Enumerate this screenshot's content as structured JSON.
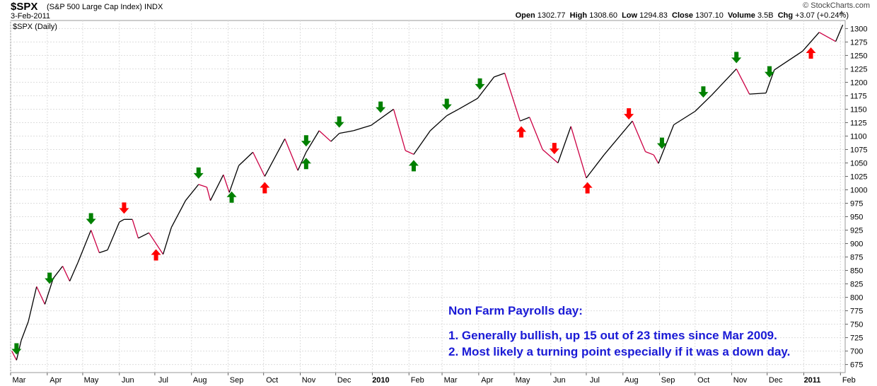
{
  "header": {
    "symbol": "$SPX",
    "description": "(S&P 500 Large Cap Index)",
    "exchange": "INDX",
    "date": "3-Feb-2011",
    "brand": "© StockCharts.com",
    "quote": {
      "open_label": "Open",
      "open": "1302.77",
      "high_label": "High",
      "high": "1308.60",
      "low_label": "Low",
      "low": "1294.83",
      "close_label": "Close",
      "close": "1307.10",
      "volume_label": "Volume",
      "volume": "3.5B",
      "chg_label": "Chg",
      "chg": "+3.07 (+0.24%)"
    }
  },
  "chart_data": {
    "type": "line",
    "title": "$SPX (Daily)",
    "ylim": [
      660,
      1315
    ],
    "y_ticks": [
      675,
      700,
      725,
      750,
      775,
      800,
      825,
      850,
      875,
      900,
      925,
      950,
      975,
      1000,
      1025,
      1050,
      1075,
      1100,
      1125,
      1150,
      1175,
      1200,
      1225,
      1250,
      1275,
      1300
    ],
    "x_labels": [
      "Mar",
      "Apr",
      "May",
      "Jun",
      "Jul",
      "Aug",
      "Sep",
      "Oct",
      "Nov",
      "Dec",
      "2010",
      "Feb",
      "Mar",
      "Apr",
      "May",
      "Jun",
      "Jul",
      "Aug",
      "Sep",
      "Oct",
      "Nov",
      "Dec",
      "2011",
      "Feb"
    ],
    "bold_x_labels": [
      "2010",
      "2011"
    ],
    "grid": true,
    "series": [
      {
        "values": [
          [
            "2009-03-02",
            700
          ],
          [
            "2009-03-06",
            683
          ],
          [
            "2009-03-10",
            720
          ],
          [
            "2009-03-16",
            755
          ],
          [
            "2009-03-23",
            820
          ],
          [
            "2009-03-30",
            787
          ],
          [
            "2009-04-06",
            835
          ],
          [
            "2009-04-14",
            858
          ],
          [
            "2009-04-20",
            830
          ],
          [
            "2009-04-27",
            865
          ],
          [
            "2009-05-08",
            925
          ],
          [
            "2009-05-15",
            883
          ],
          [
            "2009-05-22",
            888
          ],
          [
            "2009-06-01",
            940
          ],
          [
            "2009-06-05",
            945
          ],
          [
            "2009-06-12",
            945
          ],
          [
            "2009-06-17",
            910
          ],
          [
            "2009-06-26",
            920
          ],
          [
            "2009-07-08",
            880
          ],
          [
            "2009-07-15",
            930
          ],
          [
            "2009-07-27",
            980
          ],
          [
            "2009-08-07",
            1010
          ],
          [
            "2009-08-14",
            1005
          ],
          [
            "2009-08-17",
            980
          ],
          [
            "2009-08-28",
            1028
          ],
          [
            "2009-09-02",
            995
          ],
          [
            "2009-09-10",
            1045
          ],
          [
            "2009-09-22",
            1070
          ],
          [
            "2009-10-02",
            1025
          ],
          [
            "2009-10-19",
            1095
          ],
          [
            "2009-10-30",
            1036
          ],
          [
            "2009-11-06",
            1070
          ],
          [
            "2009-11-17",
            1110
          ],
          [
            "2009-11-27",
            1090
          ],
          [
            "2009-12-04",
            1105
          ],
          [
            "2009-12-16",
            1110
          ],
          [
            "2009-12-31",
            1120
          ],
          [
            "2010-01-19",
            1150
          ],
          [
            "2010-01-29",
            1073
          ],
          [
            "2010-02-05",
            1066
          ],
          [
            "2010-02-19",
            1110
          ],
          [
            "2010-03-05",
            1138
          ],
          [
            "2010-03-15",
            1150
          ],
          [
            "2010-03-31",
            1170
          ],
          [
            "2010-04-14",
            1210
          ],
          [
            "2010-04-23",
            1217
          ],
          [
            "2010-05-06",
            1128
          ],
          [
            "2010-05-14",
            1135
          ],
          [
            "2010-05-25",
            1075
          ],
          [
            "2010-06-07",
            1050
          ],
          [
            "2010-06-18",
            1118
          ],
          [
            "2010-07-01",
            1022
          ],
          [
            "2010-07-16",
            1065
          ],
          [
            "2010-08-09",
            1128
          ],
          [
            "2010-08-20",
            1071
          ],
          [
            "2010-08-27",
            1065
          ],
          [
            "2010-08-31",
            1049
          ],
          [
            "2010-09-13",
            1121
          ],
          [
            "2010-10-01",
            1146
          ],
          [
            "2010-10-15",
            1176
          ],
          [
            "2010-11-05",
            1225
          ],
          [
            "2010-11-16",
            1178
          ],
          [
            "2010-11-30",
            1180
          ],
          [
            "2010-12-07",
            1223
          ],
          [
            "2010-12-31",
            1258
          ],
          [
            "2011-01-14",
            1293
          ],
          [
            "2011-01-28",
            1276
          ],
          [
            "2011-02-03",
            1307
          ]
        ]
      }
    ],
    "markers_down_green": [
      "2009-03-06",
      "2009-04-03",
      "2009-05-08",
      "2009-08-07",
      "2009-11-06",
      "2009-12-04",
      "2010-01-08",
      "2010-03-05",
      "2010-04-02",
      "2010-09-03",
      "2010-10-08",
      "2010-11-05",
      "2010-12-03"
    ],
    "markers_up_green": [
      "2009-09-04",
      "2009-11-06",
      "2010-02-05"
    ],
    "markers_down_red": [
      "2009-06-05",
      "2010-06-04",
      "2010-08-06"
    ],
    "markers_up_red": [
      "2009-07-02",
      "2009-10-02",
      "2010-05-07",
      "2010-07-02",
      "2011-01-07"
    ],
    "marker_colors": {
      "green": "#008000",
      "red": "#ff0000"
    },
    "line_colors": {
      "up": "#000000",
      "down": "#cc0044"
    }
  },
  "annotation": {
    "heading": "Non Farm Payrolls day:",
    "line1": "1. Generally bullish, up 15 out of 23 times since Mar 2009.",
    "line2": "2. Most likely a turning point especially if it was a down day."
  }
}
